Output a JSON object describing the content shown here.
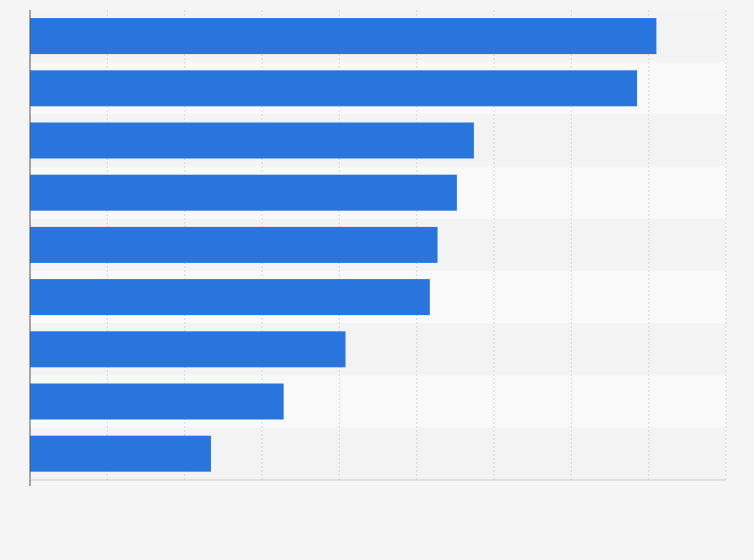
{
  "chart_data": {
    "type": "bar",
    "orientation": "horizontal",
    "categories": [
      "",
      "",
      "",
      "",
      "",
      "",
      "",
      "",
      ""
    ],
    "values": [
      81,
      78.5,
      57.4,
      55.2,
      52.7,
      51.7,
      40.8,
      32.8,
      23.4
    ],
    "xlim": [
      0,
      90
    ],
    "x_gridlines": [
      0,
      10,
      20,
      30,
      40,
      50,
      60,
      70,
      80,
      90
    ],
    "grid": true,
    "legend": "none",
    "colors": {
      "bar": "#2876dd",
      "band_dark": "#f3f3f3",
      "band_light": "#f9f9f9",
      "grid": "#d9d9d9",
      "axis": "#555555",
      "background": "#f5f5f5"
    }
  }
}
